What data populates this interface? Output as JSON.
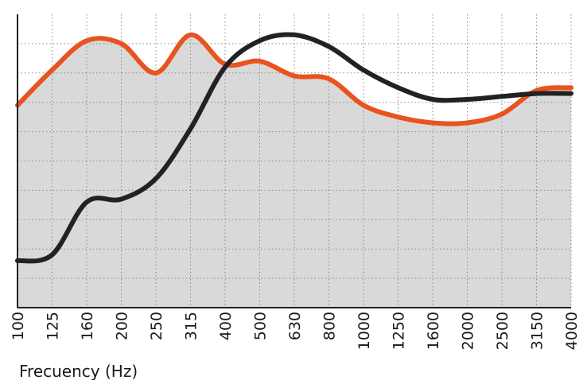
{
  "chart_data": {
    "type": "line",
    "xlabel": "Frecuency (Hz)",
    "ylabel": "",
    "categories": [
      "100",
      "125",
      "160",
      "200",
      "250",
      "315",
      "400",
      "500",
      "630",
      "800",
      "1000",
      "1250",
      "1600",
      "2000",
      "2500",
      "3150",
      "4000"
    ],
    "ylim": [
      0,
      10
    ],
    "grid": true,
    "legend": "none",
    "series": [
      {
        "color": "#e8531f",
        "fill": "#d9d9d9",
        "values": [
          6.9,
          8.1,
          9.1,
          9.0,
          8.0,
          9.3,
          8.3,
          8.4,
          7.9,
          7.8,
          6.9,
          6.5,
          6.3,
          6.3,
          6.6,
          7.4,
          7.5
        ]
      },
      {
        "color": "#222222",
        "values": [
          1.6,
          1.8,
          3.6,
          3.7,
          4.4,
          6.1,
          8.2,
          9.1,
          9.3,
          8.9,
          8.1,
          7.5,
          7.1,
          7.1,
          7.2,
          7.3,
          7.3
        ]
      }
    ]
  }
}
